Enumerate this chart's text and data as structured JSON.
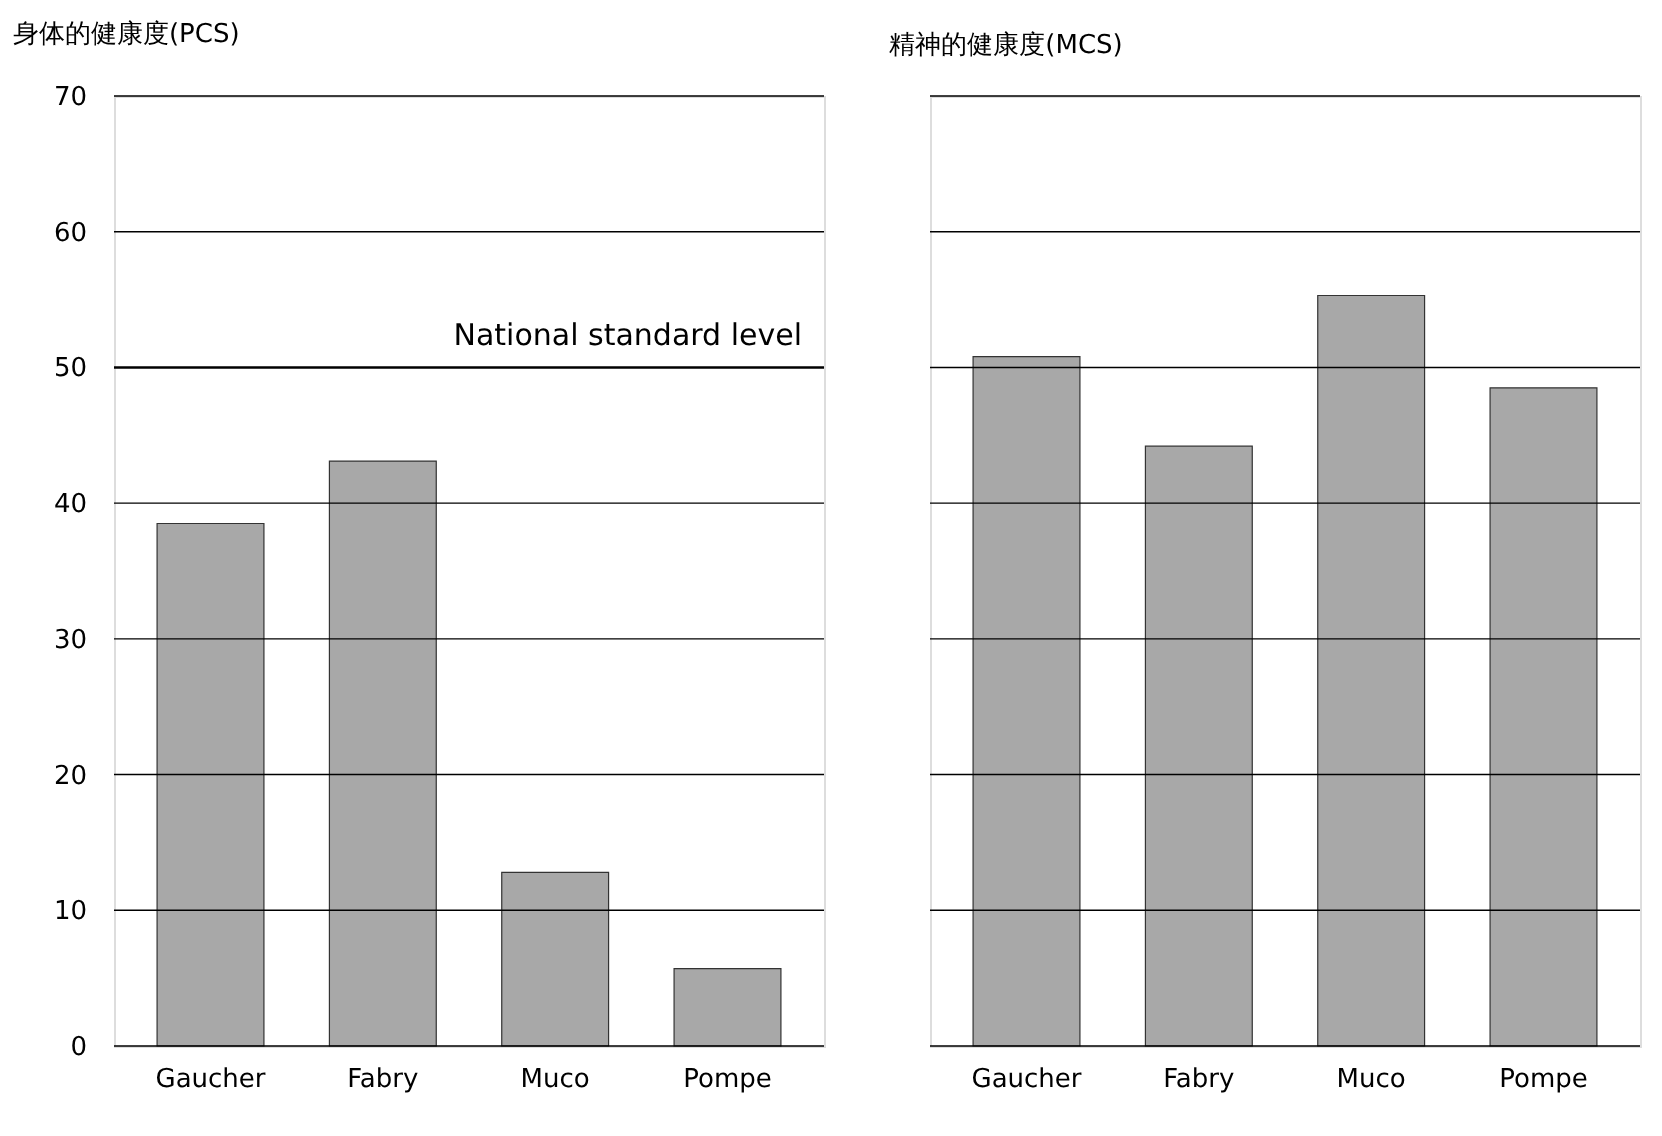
{
  "chart_data": [
    {
      "type": "bar",
      "title": "身体的健康度(PCS)",
      "categories": [
        "Gaucher",
        "Fabry",
        "Muco",
        "Pompe"
      ],
      "values": [
        38.5,
        43.1,
        12.8,
        5.7
      ],
      "color": "#a8a8a8",
      "ylim": [
        0,
        70
      ],
      "yticks": [
        0,
        10,
        20,
        30,
        40,
        50,
        60,
        70
      ],
      "grid": "y",
      "ref_lines": [
        {
          "axis": "y",
          "value": 50,
          "label": "National standard level",
          "color": "#000000"
        }
      ]
    },
    {
      "type": "bar",
      "title": "精神的健康度(MCS)",
      "categories": [
        "Gaucher",
        "Fabry",
        "Muco",
        "Pompe"
      ],
      "values": [
        50.8,
        44.2,
        55.3,
        48.5
      ],
      "color": "#a8a8a8",
      "ylim": [
        0,
        70
      ],
      "yticks": [
        0,
        10,
        20,
        30,
        40,
        50,
        60,
        70
      ],
      "grid": "y",
      "tick_labels": "x"
    }
  ]
}
